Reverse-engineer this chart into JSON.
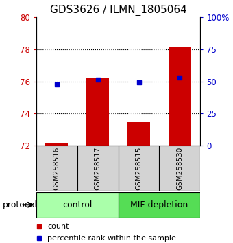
{
  "title": "GDS3626 / ILMN_1805064",
  "samples": [
    "GSM258516",
    "GSM258517",
    "GSM258515",
    "GSM258530"
  ],
  "bar_values": [
    72.15,
    76.25,
    73.5,
    78.1
  ],
  "percentile_values": [
    75.82,
    76.12,
    75.95,
    76.25
  ],
  "ylim_left": [
    72,
    80
  ],
  "ylim_right": [
    0,
    100
  ],
  "yticks_left": [
    72,
    74,
    76,
    78,
    80
  ],
  "yticks_right": [
    0,
    25,
    50,
    75,
    100
  ],
  "ytick_labels_right": [
    "0",
    "25",
    "50",
    "75",
    "100%"
  ],
  "bar_bottom": 72,
  "bar_color": "#cc0000",
  "dot_color": "#0000cc",
  "bar_width": 0.55,
  "groups": [
    {
      "label": "control",
      "indices": [
        0,
        1
      ],
      "color": "#aaffaa"
    },
    {
      "label": "MIF depletion",
      "indices": [
        2,
        3
      ],
      "color": "#55dd55"
    }
  ],
  "protocol_label": "protocol",
  "legend_bar_label": "count",
  "legend_dot_label": "percentile rank within the sample",
  "title_fontsize": 11,
  "tick_fontsize": 8.5,
  "sample_fontsize": 7.5,
  "group_fontsize": 9,
  "legend_fontsize": 8
}
